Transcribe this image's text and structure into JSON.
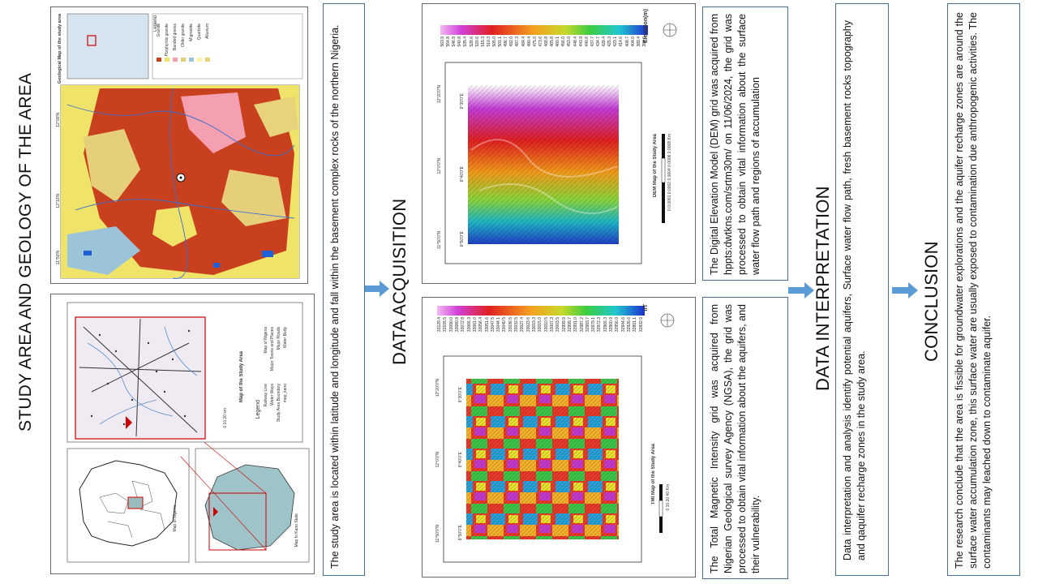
{
  "headings": {
    "study_area": "STUDY AREA AND GEOLOGY OF THE AREA",
    "data_acquisition": "DATA ACQUISITION",
    "data_interpretation": "DATA INTERPRETATION",
    "conclusion": "CONCLUSION"
  },
  "paragraphs": {
    "study_area": "The study area is located within latitude and longitude and fall within the basement complex rocks of the northern Nigeria.",
    "dem": "The Digital Elevation Model (DEM) grid was acquired from hppts:dwtkns.com/srtm30m/ on 11/06/2024, the grid was processed to obtain vital information about the surface water flow path and regions of accumulation",
    "tmi": "The Total Magnetic Intensity grid was acquired from Nigerian Geological survey Agency (NGSA), the grid was processed to obtain vital information about the aquifers, and their vulnerability.",
    "interpretation": "Data interpretation and analysis identify potential aquifers, Surface water flow path, fresh basement rocks topography and qaquifer recharge zones in the study area.",
    "conclusion": "The research conclude that the area is fissible for groundwater explorations and the aquifer recharge zones are around the surface water accumulation zone, this surface water are usually exposed to contamination due anthropogenic activities. The contaminants may leached down to contaminate aquifer."
  },
  "maps": {
    "location": {
      "title": "Map of the Study Area",
      "nigeria_label": "Map of Nigeria",
      "kano_label": "Map fo Kano State",
      "legend_title": "Legend",
      "legend_items": [
        "Railway Line",
        "Water Ways",
        "Study Area Boundary",
        "map_kano",
        "Map of Nigeria",
        "Major Towns and Places",
        "Major Roads",
        "Water Body"
      ],
      "scale_label": "0 10 20 km",
      "ticks_x": [
        "14.000",
        "12.000",
        "10.000",
        "8.000",
        "6.000",
        "4.000",
        "2.000"
      ]
    },
    "geology": {
      "title": "Geological Map of the study area",
      "legend_title": "Legend",
      "legend_items": [
        "Granite",
        "Porphyritic granite",
        "Banded gneiss",
        "Older granite",
        "Migmatite",
        "Quartzite",
        "Alluvium"
      ],
      "ticks": [
        "12°00'N",
        "12°10'N",
        "11°50'N",
        "8°40'E",
        "8°50'E"
      ]
    },
    "dem": {
      "title": "DEM Map of the Study Area",
      "unit": "Elevation(m)",
      "colorbar": [
        "563.9",
        "554.8",
        "546.9",
        "540.8",
        "535.4",
        "528.6",
        "520.6",
        "515.3",
        "510.3",
        "505.0",
        "501.1",
        "496.7",
        "492.0",
        "487.3",
        "484.4",
        "480.4",
        "475.0",
        "473.6",
        "468.8",
        "465.8",
        "460.1",
        "456.0",
        "453.0",
        "448.4",
        "443.9",
        "440.6",
        "437.7",
        "434.7",
        "428.4",
        "425.3",
        "423.1",
        "414.6",
        "408.7",
        "404.0",
        "389.4",
        "394.0"
      ],
      "scale_label": "0 0.0001 0.0002 0.0004 0.0006 0.0008 Km",
      "ticks": [
        "12°20'0\"N",
        "12°0'0\"N",
        "11°50'0\"N",
        "8°40'0\"E",
        "8°30'0\"E",
        "8°50'0\"E"
      ]
    },
    "tmi": {
      "title": "TMI Map of the Study Area",
      "unit": "nT",
      "colorbar": [
        "33129.4",
        "33105.5",
        "33090.0",
        "33080.8",
        "33072.8",
        "33066.3",
        "33061.0",
        "33056.4",
        "33051.6",
        "33047.5",
        "33044.1",
        "33040.5",
        "33036.5",
        "33032.5",
        "33027.4",
        "33023.6",
        "33019.3",
        "33015.0",
        "33010.5",
        "33007.3",
        "33003.5",
        "32999.9",
        "32995.7",
        "32991.0",
        "32987.2",
        "32983.7",
        "32979.1",
        "32972.3",
        "32966.3",
        "32960.9",
        "32956.0",
        "32944.6",
        "32926.6",
        "32891.1",
        "32832.9"
      ],
      "scale_label": "0 10 20 40 Km",
      "ticks": [
        "12°20'0\"N",
        "12°0'0\"N",
        "11°50'0\"N",
        "8°40'0\"E",
        "8°30'0\"E",
        "8°50'0\"E"
      ]
    }
  },
  "colors": {
    "arrow": "#5b9bd5",
    "box_border": "#4a6f8f"
  }
}
